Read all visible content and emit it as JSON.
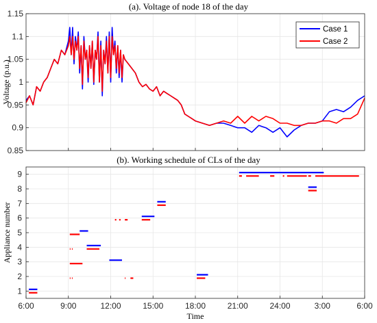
{
  "chart_data": [
    {
      "type": "line",
      "title": "(a). Voltage of node 18 of the day",
      "xlabel": "",
      "ylabel": "Voltage (p.u.)",
      "xlim": [
        0,
        24
      ],
      "ylim": [
        0.85,
        1.15
      ],
      "grid": true,
      "legend": "top-right",
      "yticks": [
        "0.85",
        "0.9",
        "0.95",
        "1",
        "1.05",
        "1.1",
        "1.15"
      ],
      "xticks": [],
      "series": [
        {
          "name": "Case 1",
          "color": "#0000ff",
          "x": [
            0,
            0.25,
            0.5,
            0.75,
            1,
            1.25,
            1.5,
            1.75,
            2,
            2.25,
            2.5,
            2.75,
            3,
            3.1,
            3.2,
            3.3,
            3.4,
            3.5,
            3.6,
            3.7,
            3.8,
            3.9,
            4,
            4.1,
            4.2,
            4.3,
            4.4,
            4.5,
            4.6,
            4.7,
            4.8,
            4.9,
            5,
            5.1,
            5.2,
            5.3,
            5.4,
            5.5,
            5.6,
            5.7,
            5.8,
            5.9,
            6,
            6.1,
            6.2,
            6.3,
            6.4,
            6.5,
            6.6,
            6.7,
            6.8,
            6.9,
            7,
            7.25,
            7.5,
            7.75,
            8,
            8.25,
            8.5,
            8.75,
            9,
            9.25,
            9.5,
            9.75,
            10,
            10.25,
            10.5,
            10.75,
            11,
            11.25,
            11.5,
            11.75,
            12,
            12.5,
            13,
            13.5,
            14,
            14.5,
            15,
            15.5,
            16,
            16.5,
            17,
            17.5,
            18,
            18.5,
            19,
            19.5,
            20,
            20.5,
            21,
            21.5,
            22,
            22.5,
            23,
            23.5,
            24
          ],
          "values": [
            0.96,
            0.97,
            0.95,
            0.99,
            0.98,
            1.0,
            1.01,
            1.03,
            1.05,
            1.04,
            1.07,
            1.06,
            1.09,
            1.12,
            1.06,
            1.12,
            1.04,
            1.1,
            1.07,
            1.11,
            1.02,
            1.08,
            0.985,
            1.1,
            1.05,
            1.07,
            1.0,
            1.08,
            1.03,
            1.09,
            0.995,
            1.07,
            1.05,
            1.11,
            1.0,
            1.09,
            0.97,
            1.07,
            1.04,
            1.1,
            1.02,
            1.11,
            1.0,
            1.12,
            1.06,
            1.09,
            1.02,
            1.08,
            1.01,
            1.07,
            1.0,
            1.06,
            1.05,
            1.04,
            1.03,
            1.02,
            1.0,
            0.99,
            0.995,
            0.985,
            0.98,
            0.99,
            0.97,
            0.98,
            0.975,
            0.97,
            0.965,
            0.96,
            0.95,
            0.93,
            0.925,
            0.92,
            0.915,
            0.91,
            0.905,
            0.91,
            0.91,
            0.905,
            0.9,
            0.9,
            0.89,
            0.905,
            0.9,
            0.89,
            0.9,
            0.88,
            0.895,
            0.905,
            0.91,
            0.91,
            0.915,
            0.935,
            0.94,
            0.935,
            0.945,
            0.96,
            0.97
          ]
        },
        {
          "name": "Case 2",
          "color": "#ff0000",
          "x": [
            0,
            0.25,
            0.5,
            0.75,
            1,
            1.25,
            1.5,
            1.75,
            2,
            2.25,
            2.5,
            2.75,
            3,
            3.1,
            3.2,
            3.3,
            3.4,
            3.5,
            3.6,
            3.7,
            3.8,
            3.9,
            4,
            4.1,
            4.2,
            4.3,
            4.4,
            4.5,
            4.6,
            4.7,
            4.8,
            4.9,
            5,
            5.1,
            5.2,
            5.3,
            5.4,
            5.5,
            5.6,
            5.7,
            5.8,
            5.9,
            6,
            6.1,
            6.2,
            6.3,
            6.4,
            6.5,
            6.6,
            6.7,
            6.8,
            6.9,
            7,
            7.25,
            7.5,
            7.75,
            8,
            8.25,
            8.5,
            8.75,
            9,
            9.25,
            9.5,
            9.75,
            10,
            10.25,
            10.5,
            10.75,
            11,
            11.25,
            11.5,
            11.75,
            12,
            12.5,
            13,
            13.5,
            14,
            14.5,
            15,
            15.5,
            16,
            16.5,
            17,
            17.5,
            18,
            18.5,
            19,
            19.5,
            20,
            20.5,
            21,
            21.5,
            22,
            22.5,
            23,
            23.5,
            24
          ],
          "values": [
            0.955,
            0.97,
            0.95,
            0.99,
            0.98,
            1.0,
            1.01,
            1.03,
            1.05,
            1.04,
            1.07,
            1.06,
            1.08,
            1.1,
            1.06,
            1.1,
            1.05,
            1.09,
            1.07,
            1.1,
            1.03,
            1.08,
            0.995,
            1.09,
            1.05,
            1.07,
            1.01,
            1.08,
            1.03,
            1.09,
            1.0,
            1.07,
            1.05,
            1.1,
            1.0,
            1.08,
            0.98,
            1.07,
            1.04,
            1.09,
            1.02,
            1.1,
            1.01,
            1.1,
            1.06,
            1.08,
            1.03,
            1.08,
            1.02,
            1.07,
            1.01,
            1.06,
            1.05,
            1.04,
            1.03,
            1.02,
            1.0,
            0.99,
            0.995,
            0.985,
            0.98,
            0.99,
            0.97,
            0.98,
            0.975,
            0.97,
            0.965,
            0.96,
            0.95,
            0.93,
            0.925,
            0.92,
            0.915,
            0.91,
            0.905,
            0.91,
            0.915,
            0.91,
            0.925,
            0.91,
            0.925,
            0.915,
            0.925,
            0.92,
            0.91,
            0.91,
            0.905,
            0.905,
            0.91,
            0.91,
            0.915,
            0.915,
            0.91,
            0.92,
            0.92,
            0.93,
            0.965
          ]
        }
      ]
    },
    {
      "type": "gantt",
      "title": "(b). Working schedule of CLs of the day",
      "xlabel": "Time",
      "ylabel": "Appliance number",
      "xlim": [
        0,
        24
      ],
      "ylim": [
        0.5,
        9.5
      ],
      "grid": true,
      "xticks": [
        {
          "value": 0,
          "label": "6:00"
        },
        {
          "value": 3,
          "label": "9:00"
        },
        {
          "value": 6,
          "label": "12:00"
        },
        {
          "value": 9,
          "label": "15:00"
        },
        {
          "value": 12,
          "label": "18:00"
        },
        {
          "value": 15,
          "label": "21:00"
        },
        {
          "value": 18,
          "label": "24:00"
        },
        {
          "value": 21,
          "label": "3:00"
        },
        {
          "value": 24,
          "label": "6:00"
        }
      ],
      "yticks": [
        "1",
        "2",
        "3",
        "4",
        "5",
        "6",
        "7",
        "8",
        "9"
      ],
      "series": [
        {
          "name": "Case 1",
          "color": "#0000ff",
          "segments": [
            {
              "appliance": 1,
              "start": 0.2,
              "end": 0.8
            },
            {
              "appliance": 2,
              "start": 12.1,
              "end": 12.9
            },
            {
              "appliance": 3,
              "start": 5.9,
              "end": 6.8
            },
            {
              "appliance": 4,
              "start": 4.3,
              "end": 5.3
            },
            {
              "appliance": 5,
              "start": 3.8,
              "end": 4.4
            },
            {
              "appliance": 6,
              "start": 8.2,
              "end": 9.1
            },
            {
              "appliance": 7,
              "start": 9.3,
              "end": 9.9
            },
            {
              "appliance": 8,
              "start": 20.0,
              "end": 20.6
            },
            {
              "appliance": 9,
              "start": 15.1,
              "end": 21.1
            }
          ]
        },
        {
          "name": "Case 2",
          "color": "#ff0000",
          "segments": [
            {
              "appliance": 1,
              "start": 0.2,
              "end": 0.8
            },
            {
              "appliance": 2,
              "start": 3.1,
              "end": 3.15
            },
            {
              "appliance": 2,
              "start": 3.25,
              "end": 3.3
            },
            {
              "appliance": 2,
              "start": 7.0,
              "end": 7.05
            },
            {
              "appliance": 2,
              "start": 7.4,
              "end": 7.6
            },
            {
              "appliance": 2,
              "start": 12.1,
              "end": 12.7
            },
            {
              "appliance": 3,
              "start": 3.1,
              "end": 4.0
            },
            {
              "appliance": 4,
              "start": 3.1,
              "end": 3.15
            },
            {
              "appliance": 4,
              "start": 3.25,
              "end": 3.3
            },
            {
              "appliance": 4,
              "start": 4.3,
              "end": 5.2
            },
            {
              "appliance": 5,
              "start": 3.1,
              "end": 3.8
            },
            {
              "appliance": 6,
              "start": 6.3,
              "end": 6.4
            },
            {
              "appliance": 6,
              "start": 6.6,
              "end": 6.7
            },
            {
              "appliance": 6,
              "start": 7.0,
              "end": 7.2
            },
            {
              "appliance": 6,
              "start": 8.2,
              "end": 8.8
            },
            {
              "appliance": 7,
              "start": 9.3,
              "end": 9.9
            },
            {
              "appliance": 8,
              "start": 20.0,
              "end": 20.6
            },
            {
              "appliance": 9,
              "start": 15.1,
              "end": 15.3
            },
            {
              "appliance": 9,
              "start": 15.6,
              "end": 16.5
            },
            {
              "appliance": 9,
              "start": 17.3,
              "end": 17.6
            },
            {
              "appliance": 9,
              "start": 18.2,
              "end": 18.3
            },
            {
              "appliance": 9,
              "start": 18.5,
              "end": 19.9
            },
            {
              "appliance": 9,
              "start": 20.0,
              "end": 20.2
            },
            {
              "appliance": 9,
              "start": 20.5,
              "end": 23.6
            }
          ]
        }
      ]
    }
  ]
}
